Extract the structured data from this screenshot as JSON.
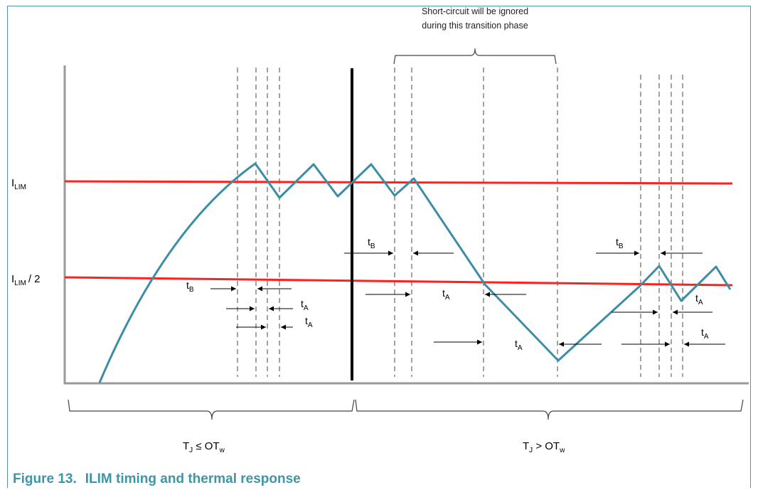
{
  "note": {
    "line1": "Short-circuit will be ignored",
    "line2": "during this transition phase"
  },
  "levels": {
    "ilim_main": "I",
    "ilim_sub": "LIM",
    "ilim_half_main": "I",
    "ilim_half_sub": "LIM",
    "ilim_half_suffix": "/ 2"
  },
  "intervals": {
    "tb_main": "t",
    "tb_sub": "B",
    "ta_main": "t",
    "ta_sub": "A"
  },
  "regions": {
    "left_t": "T",
    "left_t_sub": "J",
    "left_op": " ≤ OT",
    "left_op_sub": "w",
    "right_t": "T",
    "right_t_sub": "J",
    "right_op": " > OT",
    "right_op_sub": "w"
  },
  "caption": {
    "number": "Figure 13.",
    "title": "ILIM timing and thermal response"
  },
  "colors": {
    "limit_line": "#ff2020",
    "current_trace": "#3b8ea5",
    "divider": "#000000",
    "axis": "#9a9a9a",
    "dashed": "#8c8c8c",
    "caption": "#3d95a6"
  }
}
